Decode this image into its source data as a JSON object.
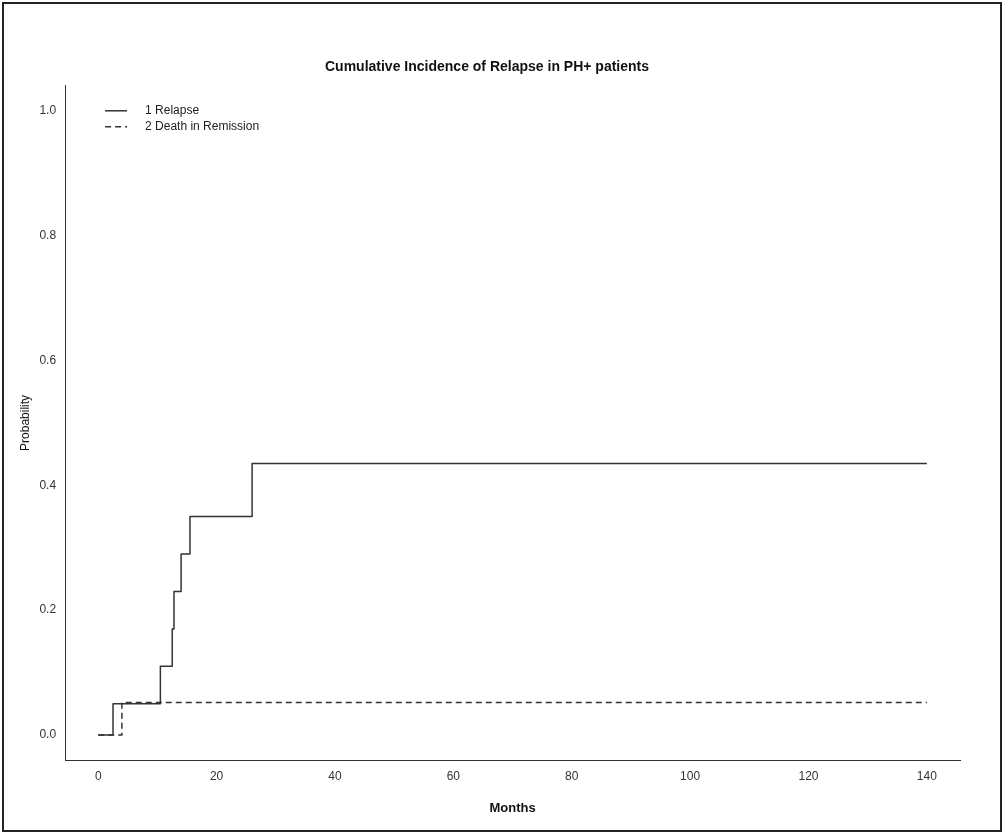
{
  "chart_data": {
    "type": "step",
    "title": "Cumulative Incidence of Relapse in PH+ patients",
    "xlabel": "Months",
    "ylabel": "Probability",
    "xlim": [
      -5.6,
      145.6
    ],
    "xticks": [
      0,
      20,
      40,
      60,
      80,
      100,
      120,
      140
    ],
    "ylim": [
      -0.04,
      1.04
    ],
    "yticks": [
      {
        "value": 0,
        "label": "0.0"
      },
      {
        "value": 0.2,
        "label": "0.2"
      },
      {
        "value": 0.4,
        "label": "0.4"
      },
      {
        "value": 0.6,
        "label": "0.6"
      },
      {
        "value": 0.8,
        "label": "0.8"
      },
      {
        "value": 1,
        "label": "1.0"
      }
    ],
    "grid": false,
    "legend": "top left",
    "marker": "none",
    "series": [
      {
        "name": "1 Relapse",
        "color": "#333333",
        "line_style": "solid",
        "x": [
          0,
          2.5,
          10.5,
          12.5,
          12.8,
          14,
          15.5,
          26,
          140
        ],
        "values": [
          0,
          0.05,
          0.11,
          0.17,
          0.23,
          0.29,
          0.35,
          0.435,
          0.435
        ]
      },
      {
        "name": "2 Death in Remission",
        "color": "#333333",
        "line_style": "dashed",
        "x": [
          0,
          4,
          140
        ],
        "values": [
          0,
          0.052,
          0.052
        ]
      }
    ]
  }
}
